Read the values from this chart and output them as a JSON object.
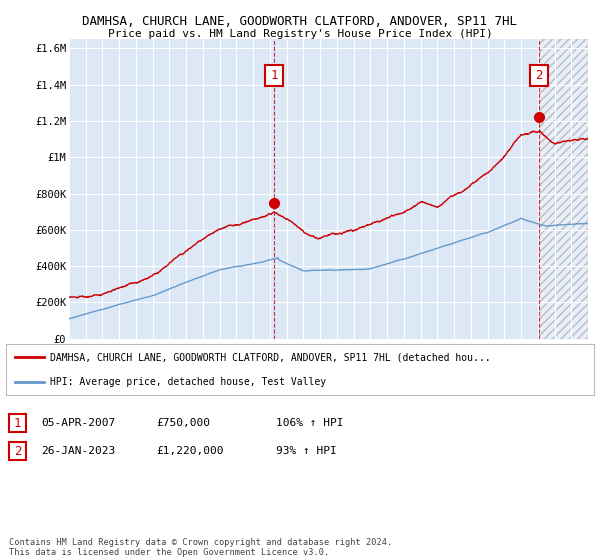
{
  "title": "DAMHSA, CHURCH LANE, GOODWORTH CLATFORD, ANDOVER, SP11 7HL",
  "subtitle": "Price paid vs. HM Land Registry's House Price Index (HPI)",
  "ylabel_ticks": [
    "£0",
    "£200K",
    "£400K",
    "£600K",
    "£800K",
    "£1M",
    "£1.2M",
    "£1.4M",
    "£1.6M"
  ],
  "ytick_values": [
    0,
    200000,
    400000,
    600000,
    800000,
    1000000,
    1200000,
    1400000,
    1600000
  ],
  "ylim": [
    0,
    1650000
  ],
  "hpi_color": "#6699cc",
  "property_color": "#cc0000",
  "bg_color": "#dce8f5",
  "bg_color_hatch": "#c8d8ea",
  "grid_color": "#ffffff",
  "point1_x": 2007.27,
  "point1_y": 750000,
  "point2_x": 2023.07,
  "point2_y": 1220000,
  "vline1_x": 2007.27,
  "vline2_x": 2023.07,
  "legend_property": "DAMHSA, CHURCH LANE, GOODWORTH CLATFORD, ANDOVER, SP11 7HL (detached hou...",
  "legend_hpi": "HPI: Average price, detached house, Test Valley",
  "annotation1_date": "05-APR-2007",
  "annotation1_price": "£750,000",
  "annotation1_hpi": "106% ↑ HPI",
  "annotation2_date": "26-JAN-2023",
  "annotation2_price": "£1,220,000",
  "annotation2_hpi": "93% ↑ HPI",
  "footer": "Contains HM Land Registry data © Crown copyright and database right 2024.\nThis data is licensed under the Open Government Licence v3.0.",
  "xmin": 1995,
  "xmax": 2026
}
